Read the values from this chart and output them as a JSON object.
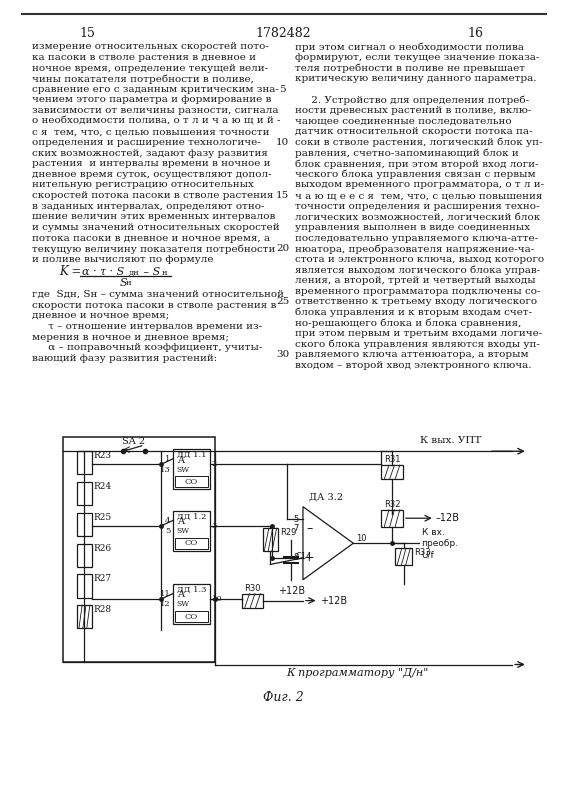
{
  "page_number_left": "15",
  "page_number_center": "1782482",
  "page_number_right": "16",
  "background_color": "#ffffff",
  "text_color": "#1a1a1a",
  "left_column_text": [
    "измерение относительных скоростей пото-",
    "ка пасоки в стволе растения в дневное и",
    "ночное время, определение текущей вели-",
    "чины покатателя потребности в поливе,",
    "сравнение его с заданным критическим зна-",
    "чением этого параметра и формирование в",
    "зависимости от величины разности, сигнала",
    "о необходимости полива, о т л и ч а ю щ и й -",
    "с я  тем, что, с целью повышения точности",
    "определения и расширение технологиче-",
    "ских возможностей, задают фазу развития",
    "растения  и интервалы времени в ночное и",
    "дневное время суток, осуществляют допол-",
    "нительную регистрацию относительных",
    "скоростей потока пасоки в стволе растения",
    "в заданных интервалах, определяют отно-",
    "шение величин этих временных интервалов",
    "и суммы значений относительных скоростей",
    "потока пасоки в дневное и ночное время, а",
    "текущую величину показателя потребности",
    "и поливе вычисляют по формуле"
  ],
  "left_legend": [
    "где  Sдн, Sн – сумма значений относительной",
    "скорости потока пасоки в стволе растения в",
    "дневное и ночное время;",
    "     τ – отношение интервалов времени из-",
    "мерения в ночное и дневное время;",
    "     α – поправочный коэффициент, учиты-",
    "вающий фазу развития растений:"
  ],
  "right_column_text": [
    "при этом сигнал о необходимости полива",
    "формируют, если текущее значение показа-",
    "теля потребности в поливе не превышает",
    "критическую величину данного параметра.",
    "",
    "     2. Устройство для определения потреб-",
    "ности древесных растений в поливе, вклю-",
    "чающее соединенные последовательно",
    "датчик относительной скорости потока па-",
    "соки в стволе растения, логический блок уп-",
    "равления, счетно-запоминающий блок и",
    "блок сравнения, при этом второй вход логи-",
    "ческого блока управления связан с первым",
    "выходом временного программатора, о т л и-",
    "ч а ю щ е е с я  тем, что, с целью повышения",
    "точности определения и расширения техно-",
    "логических возможностей, логический блок",
    "управления выполнен в виде соединенных",
    "последовательно управляемого ключа-атте-",
    "нюатора, преобразователя напряжение-ча-",
    "стота и электронного ключа, выход которого",
    "является выходом логического блока управ-",
    "ления, а второй, тртей и четвертый выходы",
    "временного программатора подключены со-",
    "ответственно к третьему входу логического",
    "блока управления и к вторым входам счет-",
    "но-решающего блока и блока сравнения,",
    "при этом первым и третьим входами логиче-",
    "ского блока управления являются входы уп-",
    "равляемого ключа аттенюатора, а вторым",
    "входом – второй хвод электронного ключа."
  ],
  "fig_caption": "Фиг. 2",
  "arrow_label_top": "К вых. УПТ",
  "arrow_label_bottom": "К программатору \"Д/н\""
}
